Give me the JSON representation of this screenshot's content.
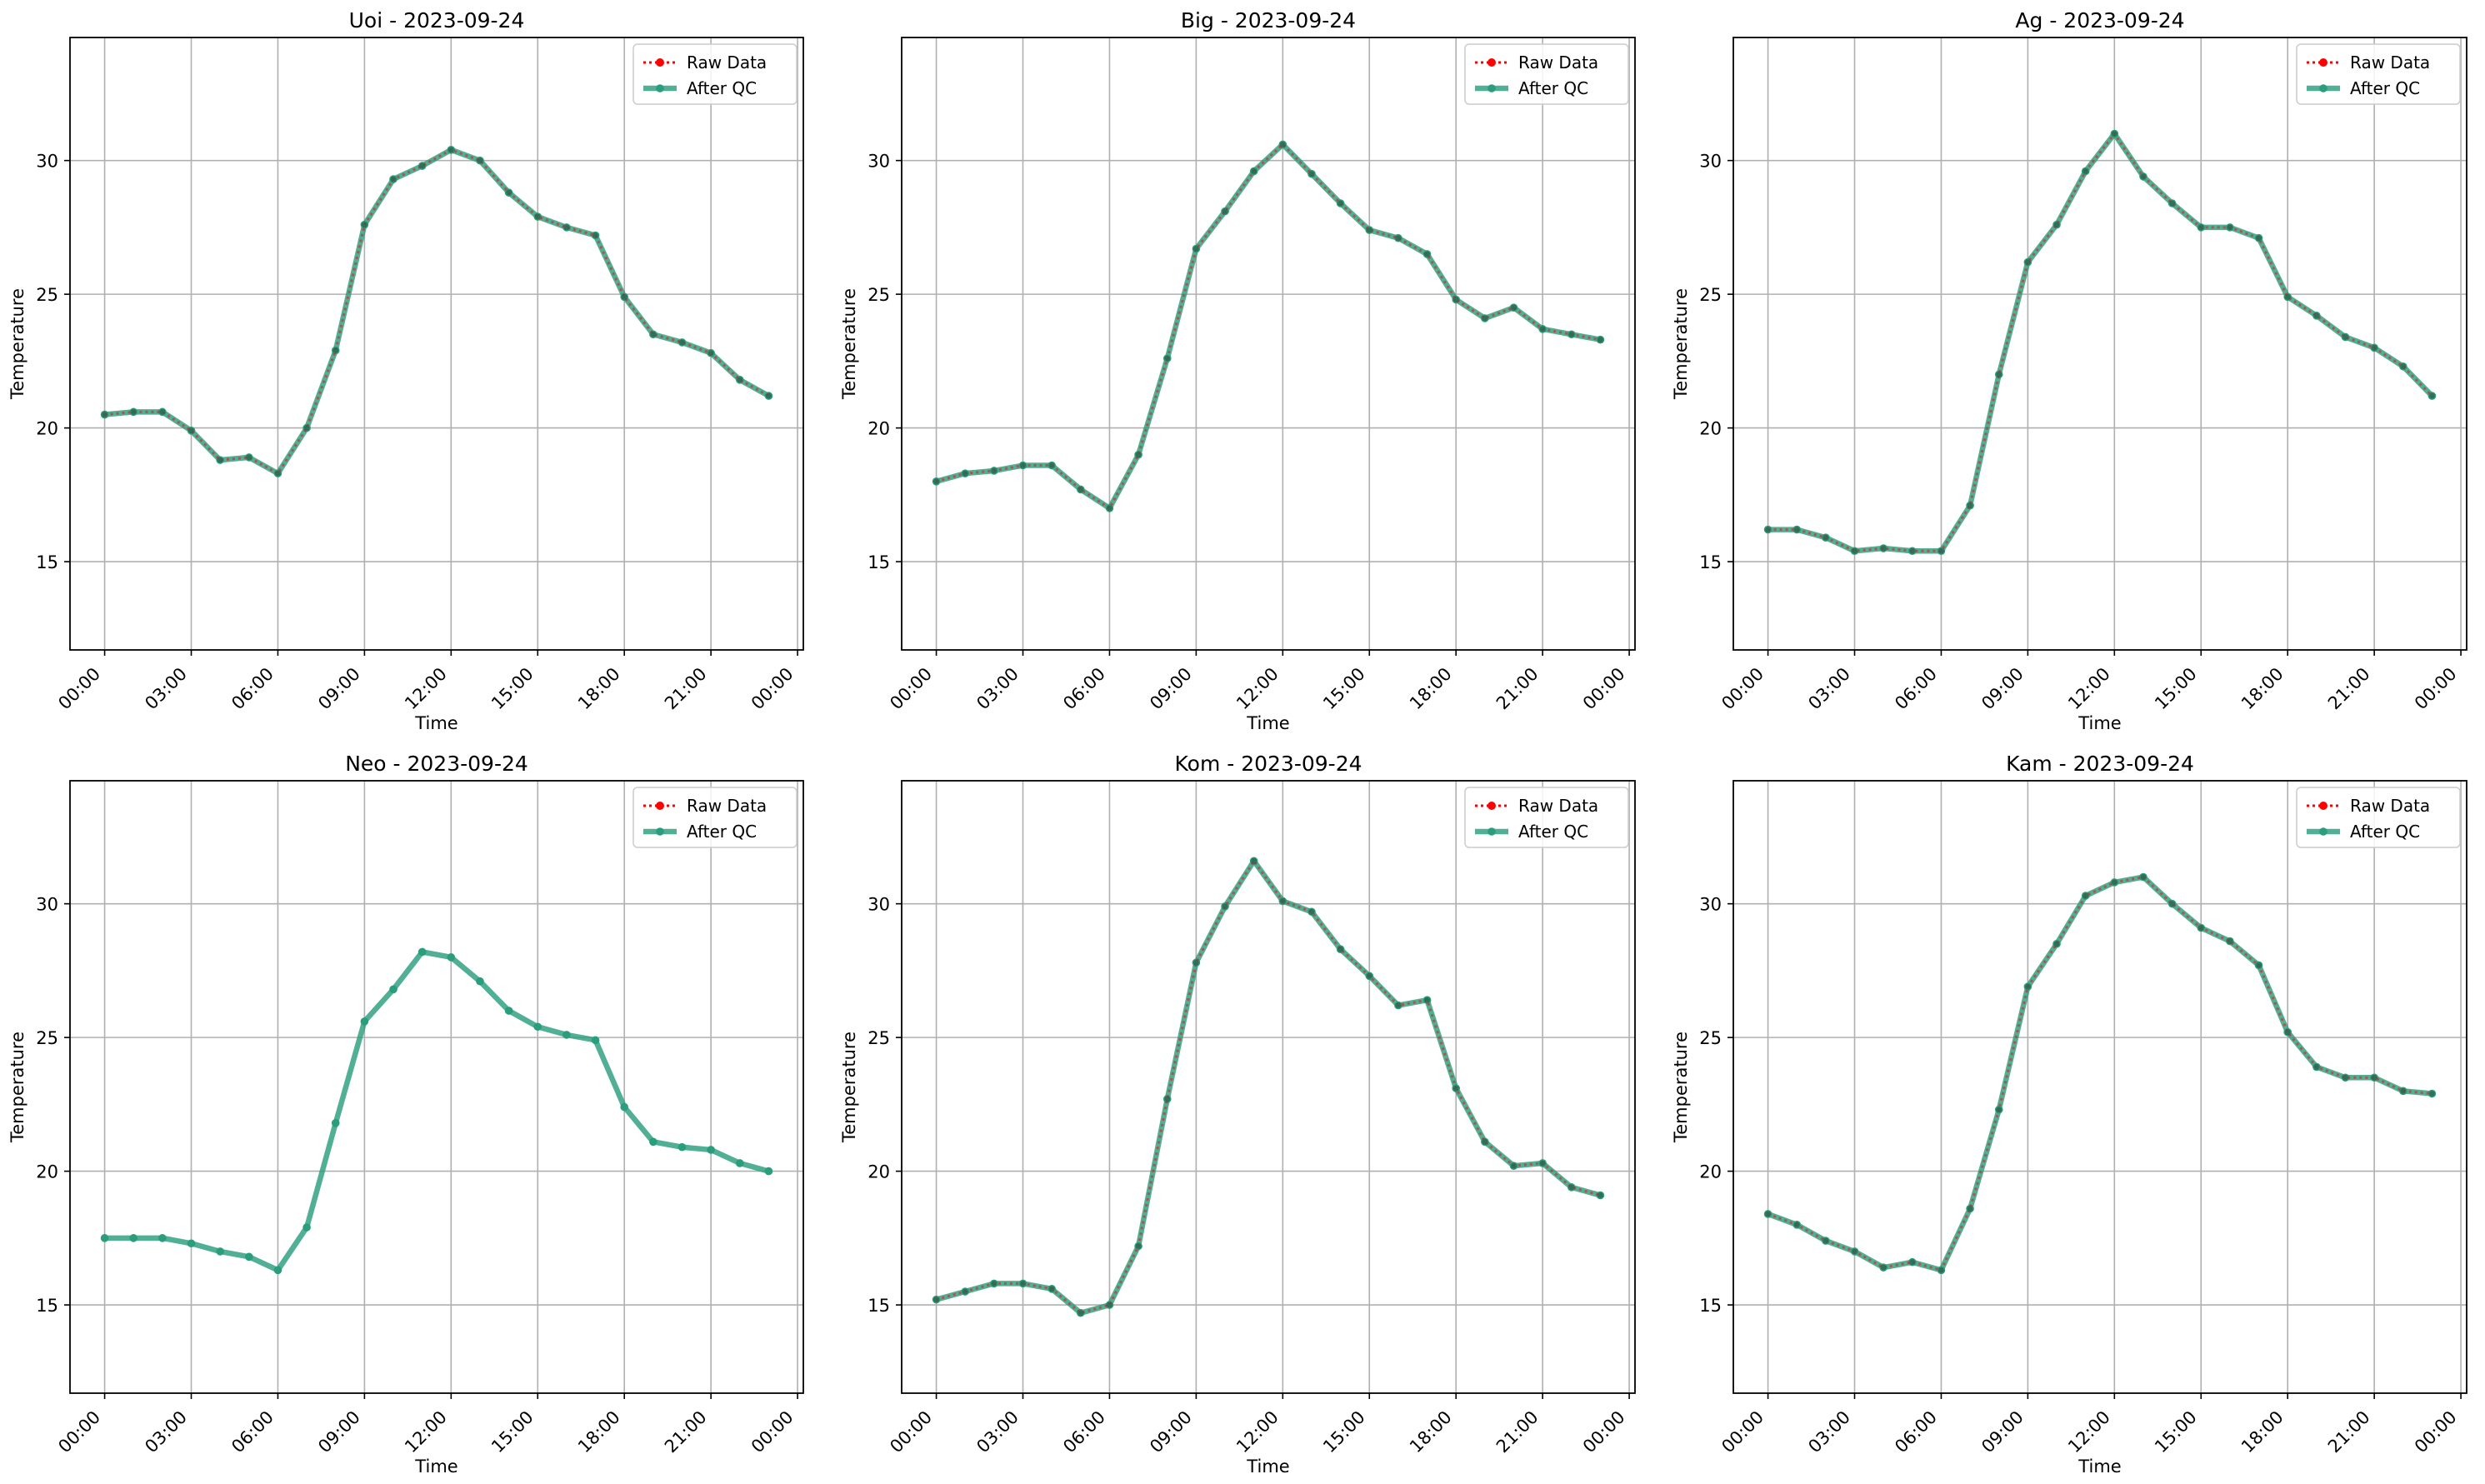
{
  "figure": {
    "layout": "2x3 grid",
    "legend_labels": {
      "raw": "Raw Data",
      "qc": "After QC"
    },
    "colors": {
      "raw": "#ff0000",
      "qc": "#2a9d7c",
      "qc_marker": "#2a9d7c",
      "grid": "#b0b0b0"
    }
  },
  "chart_data": [
    {
      "type": "line",
      "title": "Uoi - 2023-09-24",
      "xlabel": "Time",
      "ylabel": "Temperature",
      "x_ticks": [
        "00:00",
        "03:00",
        "06:00",
        "09:00",
        "12:00",
        "15:00",
        "18:00",
        "21:00",
        "00:00"
      ],
      "y_ticks": [
        15,
        20,
        25,
        30
      ],
      "xlim_hours": [
        -1.2,
        24.2
      ],
      "ylim": [
        11.7,
        34.6
      ],
      "grid": true,
      "legend": "upper right",
      "x_hours": [
        0,
        1,
        2,
        3,
        4,
        5,
        6,
        7,
        8,
        9,
        10,
        11,
        12,
        13,
        14,
        15,
        16,
        17,
        18,
        19,
        20,
        21,
        22,
        23
      ],
      "series": [
        {
          "name": "Raw Data",
          "values": [
            20.5,
            20.6,
            20.6,
            19.9,
            18.8,
            18.9,
            18.3,
            20.0,
            22.9,
            27.6,
            29.3,
            29.8,
            30.4,
            30.0,
            28.8,
            27.9,
            27.5,
            27.2,
            24.9,
            23.5,
            23.2,
            22.8,
            21.8,
            21.2
          ]
        },
        {
          "name": "After QC",
          "values": [
            20.5,
            20.6,
            20.6,
            19.9,
            18.8,
            18.9,
            18.3,
            20.0,
            22.9,
            27.6,
            29.3,
            29.8,
            30.4,
            30.0,
            28.8,
            27.9,
            27.5,
            27.2,
            24.9,
            23.5,
            23.2,
            22.8,
            21.8,
            21.2
          ]
        }
      ]
    },
    {
      "type": "line",
      "title": "Big - 2023-09-24",
      "xlabel": "Time",
      "ylabel": "Temperature",
      "x_ticks": [
        "00:00",
        "03:00",
        "06:00",
        "09:00",
        "12:00",
        "15:00",
        "18:00",
        "21:00",
        "00:00"
      ],
      "y_ticks": [
        15,
        20,
        25,
        30
      ],
      "xlim_hours": [
        -1.2,
        24.2
      ],
      "ylim": [
        11.7,
        34.6
      ],
      "grid": true,
      "legend": "upper right",
      "x_hours": [
        0,
        1,
        2,
        3,
        4,
        5,
        6,
        7,
        8,
        9,
        10,
        11,
        12,
        13,
        14,
        15,
        16,
        17,
        18,
        19,
        20,
        21,
        22,
        23
      ],
      "series": [
        {
          "name": "Raw Data",
          "values": [
            18.0,
            18.3,
            18.4,
            18.6,
            18.6,
            17.7,
            17.0,
            19.0,
            22.6,
            26.7,
            28.1,
            29.6,
            30.6,
            29.5,
            28.4,
            27.4,
            27.1,
            26.5,
            24.8,
            24.1,
            24.5,
            23.7,
            23.5,
            23.3
          ]
        },
        {
          "name": "After QC",
          "values": [
            18.0,
            18.3,
            18.4,
            18.6,
            18.6,
            17.7,
            17.0,
            19.0,
            22.6,
            26.7,
            28.1,
            29.6,
            30.6,
            29.5,
            28.4,
            27.4,
            27.1,
            26.5,
            24.8,
            24.1,
            24.5,
            23.7,
            23.5,
            23.3
          ]
        }
      ]
    },
    {
      "type": "line",
      "title": "Ag - 2023-09-24",
      "xlabel": "Time",
      "ylabel": "Temperature",
      "x_ticks": [
        "00:00",
        "03:00",
        "06:00",
        "09:00",
        "12:00",
        "15:00",
        "18:00",
        "21:00",
        "00:00"
      ],
      "y_ticks": [
        15,
        20,
        25,
        30
      ],
      "xlim_hours": [
        -1.2,
        24.2
      ],
      "ylim": [
        11.7,
        34.6
      ],
      "grid": true,
      "legend": "upper right",
      "x_hours": [
        0,
        1,
        2,
        3,
        4,
        5,
        6,
        7,
        8,
        9,
        10,
        11,
        12,
        13,
        14,
        15,
        16,
        17,
        18,
        19,
        20,
        21,
        22,
        23
      ],
      "series": [
        {
          "name": "Raw Data",
          "values": [
            16.2,
            16.2,
            15.9,
            15.4,
            15.5,
            15.4,
            15.4,
            17.1,
            22.0,
            26.2,
            27.6,
            29.6,
            31.0,
            29.4,
            28.4,
            27.5,
            27.5,
            27.1,
            24.9,
            24.2,
            23.4,
            23.0,
            22.3,
            21.2
          ]
        },
        {
          "name": "After QC",
          "values": [
            16.2,
            16.2,
            15.9,
            15.4,
            15.5,
            15.4,
            15.4,
            17.1,
            22.0,
            26.2,
            27.6,
            29.6,
            31.0,
            29.4,
            28.4,
            27.5,
            27.5,
            27.1,
            24.9,
            24.2,
            23.4,
            23.0,
            22.3,
            21.2
          ]
        }
      ]
    },
    {
      "type": "line",
      "title": "Neo - 2023-09-24",
      "xlabel": "Time",
      "ylabel": "Temperature",
      "x_ticks": [
        "00:00",
        "03:00",
        "06:00",
        "09:00",
        "12:00",
        "15:00",
        "18:00",
        "21:00",
        "00:00"
      ],
      "y_ticks": [
        15,
        20,
        25,
        30
      ],
      "xlim_hours": [
        -1.2,
        24.2
      ],
      "ylim": [
        11.7,
        34.6
      ],
      "grid": true,
      "legend": "upper right",
      "x_hours": [
        0,
        1,
        2,
        3,
        4,
        5,
        6,
        7,
        8,
        9,
        10,
        11,
        12,
        13,
        14,
        15,
        16,
        17,
        18,
        19,
        20,
        21,
        22,
        23
      ],
      "series": [
        {
          "name": "Raw Data",
          "values": []
        },
        {
          "name": "After QC",
          "values": [
            17.5,
            17.5,
            17.5,
            17.3,
            17.0,
            16.8,
            16.3,
            17.9,
            21.8,
            25.6,
            26.8,
            28.2,
            28.0,
            27.1,
            26.0,
            25.4,
            25.1,
            24.9,
            22.4,
            21.1,
            20.9,
            20.8,
            20.3,
            20.0
          ]
        }
      ]
    },
    {
      "type": "line",
      "title": "Kom - 2023-09-24",
      "xlabel": "Time",
      "ylabel": "Temperature",
      "x_ticks": [
        "00:00",
        "03:00",
        "06:00",
        "09:00",
        "12:00",
        "15:00",
        "18:00",
        "21:00",
        "00:00"
      ],
      "y_ticks": [
        15,
        20,
        25,
        30
      ],
      "xlim_hours": [
        -1.2,
        24.2
      ],
      "ylim": [
        11.7,
        34.6
      ],
      "grid": true,
      "legend": "upper right",
      "x_hours": [
        0,
        1,
        2,
        3,
        4,
        5,
        6,
        7,
        8,
        9,
        10,
        11,
        12,
        13,
        14,
        15,
        16,
        17,
        18,
        19,
        20,
        21,
        22,
        23
      ],
      "series": [
        {
          "name": "Raw Data",
          "values": [
            15.2,
            15.5,
            15.8,
            15.8,
            15.6,
            14.7,
            15.0,
            17.2,
            22.7,
            27.8,
            29.9,
            31.6,
            30.1,
            29.7,
            28.3,
            27.3,
            26.2,
            26.4,
            23.1,
            21.1,
            20.2,
            20.3,
            19.4,
            19.1
          ]
        },
        {
          "name": "After QC",
          "values": [
            15.2,
            15.5,
            15.8,
            15.8,
            15.6,
            14.7,
            15.0,
            17.2,
            22.7,
            27.8,
            29.9,
            31.6,
            30.1,
            29.7,
            28.3,
            27.3,
            26.2,
            26.4,
            23.1,
            21.1,
            20.2,
            20.3,
            19.4,
            19.1
          ]
        }
      ]
    },
    {
      "type": "line",
      "title": "Kam - 2023-09-24",
      "xlabel": "Time",
      "ylabel": "Temperature",
      "x_ticks": [
        "00:00",
        "03:00",
        "06:00",
        "09:00",
        "12:00",
        "15:00",
        "18:00",
        "21:00",
        "00:00"
      ],
      "y_ticks": [
        15,
        20,
        25,
        30
      ],
      "xlim_hours": [
        -1.2,
        24.2
      ],
      "ylim": [
        11.7,
        34.6
      ],
      "grid": true,
      "legend": "upper right",
      "x_hours": [
        0,
        1,
        2,
        3,
        4,
        5,
        6,
        7,
        8,
        9,
        10,
        11,
        12,
        13,
        14,
        15,
        16,
        17,
        18,
        19,
        20,
        21,
        22,
        23
      ],
      "series": [
        {
          "name": "Raw Data",
          "values": [
            18.4,
            18.0,
            17.4,
            17.0,
            16.4,
            16.6,
            16.3,
            18.6,
            22.3,
            26.9,
            28.5,
            30.3,
            30.8,
            31.0,
            30.0,
            29.1,
            28.6,
            27.7,
            25.2,
            23.9,
            23.5,
            23.5,
            23.0,
            22.9
          ]
        },
        {
          "name": "After QC",
          "values": [
            18.4,
            18.0,
            17.4,
            17.0,
            16.4,
            16.6,
            16.3,
            18.6,
            22.3,
            26.9,
            28.5,
            30.3,
            30.8,
            31.0,
            30.0,
            29.1,
            28.6,
            27.7,
            25.2,
            23.9,
            23.5,
            23.5,
            23.0,
            22.9
          ]
        }
      ]
    }
  ]
}
